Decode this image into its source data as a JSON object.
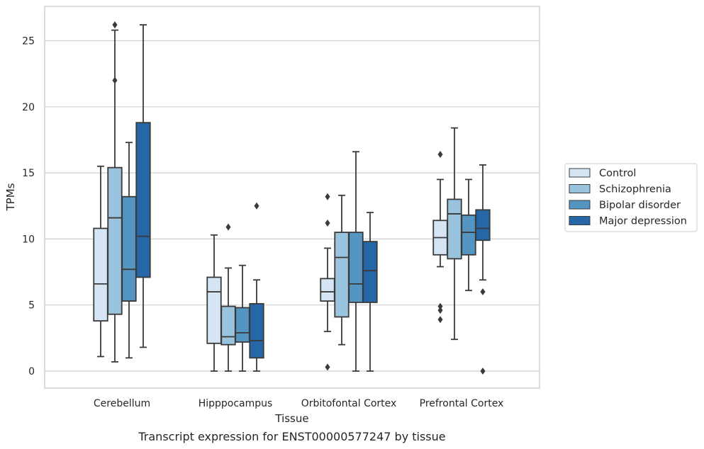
{
  "chart_data": {
    "type": "box",
    "caption": "Transcript expression for ENST00000577247 by tissue",
    "xlabel": "Tissue",
    "ylabel": "TPMs",
    "ylim": [
      -1.2,
      27.5
    ],
    "yticks": [
      0,
      5,
      10,
      15,
      20,
      25
    ],
    "grid": true,
    "legend_position": "right",
    "categories": [
      "Cerebellum",
      "Hipppocampus",
      "Orbitofontal Cortex",
      "Prefrontal Cortex"
    ],
    "series": [
      {
        "name": "Control",
        "color": "#d6e5f3",
        "boxes": [
          {
            "whislo": 1.1,
            "q1": 3.8,
            "med": 6.6,
            "q3": 10.8,
            "whishi": 15.5,
            "fliers": []
          },
          {
            "whislo": 0.0,
            "q1": 2.1,
            "med": 6.0,
            "q3": 7.1,
            "whishi": 10.3,
            "fliers": []
          },
          {
            "whislo": 3.0,
            "q1": 5.3,
            "med": 6.0,
            "q3": 7.0,
            "whishi": 9.3,
            "fliers": [
              0.3,
              11.2,
              13.2
            ]
          },
          {
            "whislo": 7.9,
            "q1": 8.8,
            "med": 10.1,
            "q3": 11.4,
            "whishi": 14.5,
            "fliers": [
              3.9,
              4.6,
              4.9,
              16.4
            ]
          }
        ]
      },
      {
        "name": "Schizophrenia",
        "color": "#9ac3dd",
        "boxes": [
          {
            "whislo": 0.7,
            "q1": 4.3,
            "med": 11.6,
            "q3": 15.4,
            "whishi": 25.8,
            "fliers": [
              22.0,
              26.2
            ]
          },
          {
            "whislo": 0.0,
            "q1": 2.0,
            "med": 2.6,
            "q3": 4.9,
            "whishi": 7.8,
            "fliers": [
              10.9
            ]
          },
          {
            "whislo": 2.0,
            "q1": 4.1,
            "med": 8.6,
            "q3": 10.5,
            "whishi": 13.3,
            "fliers": []
          },
          {
            "whislo": 2.4,
            "q1": 8.5,
            "med": 11.9,
            "q3": 13.0,
            "whishi": 18.4,
            "fliers": []
          }
        ]
      },
      {
        "name": "Bipolar disorder",
        "color": "#5595c1",
        "boxes": [
          {
            "whislo": 1.0,
            "q1": 5.3,
            "med": 7.7,
            "q3": 13.2,
            "whishi": 17.3,
            "fliers": []
          },
          {
            "whislo": 0.0,
            "q1": 2.2,
            "med": 2.9,
            "q3": 4.8,
            "whishi": 8.0,
            "fliers": []
          },
          {
            "whislo": 0.0,
            "q1": 5.2,
            "med": 6.6,
            "q3": 10.5,
            "whishi": 16.6,
            "fliers": []
          },
          {
            "whislo": 6.1,
            "q1": 8.8,
            "med": 10.5,
            "q3": 11.8,
            "whishi": 14.5,
            "fliers": []
          }
        ]
      },
      {
        "name": "Major depression",
        "color": "#2667a8",
        "boxes": [
          {
            "whislo": 1.8,
            "q1": 7.1,
            "med": 10.2,
            "q3": 18.8,
            "whishi": 26.2,
            "fliers": []
          },
          {
            "whislo": 0.0,
            "q1": 1.0,
            "med": 2.3,
            "q3": 5.1,
            "whishi": 6.9,
            "fliers": [
              12.5
            ]
          },
          {
            "whislo": 0.0,
            "q1": 5.2,
            "med": 7.6,
            "q3": 9.8,
            "whishi": 12.0,
            "fliers": []
          },
          {
            "whislo": 6.9,
            "q1": 9.9,
            "med": 10.8,
            "q3": 12.2,
            "whishi": 15.6,
            "fliers": [
              0.0,
              6.0
            ]
          }
        ]
      }
    ]
  }
}
